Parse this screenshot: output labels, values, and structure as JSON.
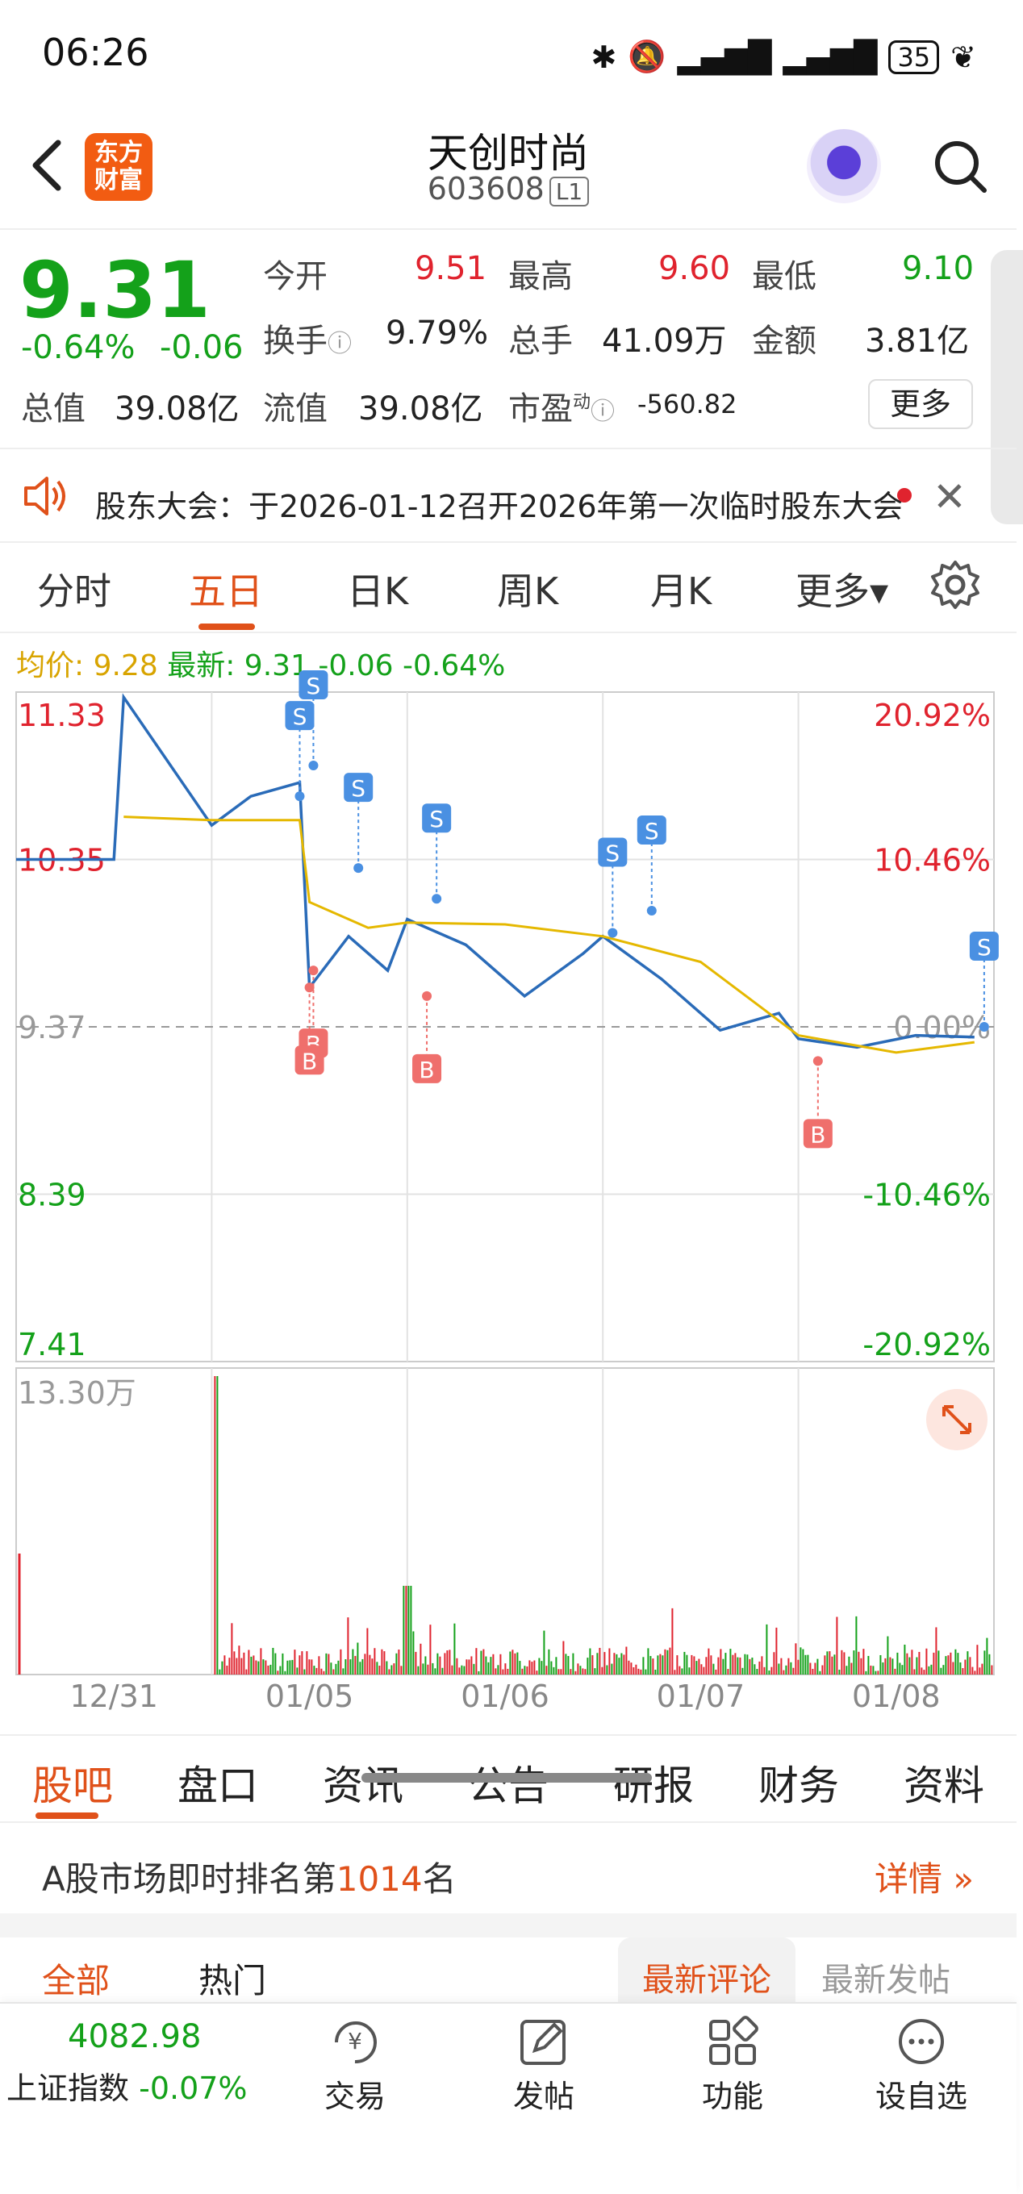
{
  "status": {
    "time": "06:26",
    "battery": "35"
  },
  "header": {
    "logo_line1": "东方",
    "logo_line2": "财富",
    "title": "天创时尚",
    "code": "603608",
    "level": "L1"
  },
  "quote": {
    "price": "9.31",
    "change_pct": "-0.64%",
    "change": "-0.06",
    "open_label": "今开",
    "open": "9.51",
    "high_label": "最高",
    "high": "9.60",
    "low_label": "最低",
    "low": "9.10",
    "turnover_label": "换手",
    "turnover": "9.79%",
    "volume_label": "总手",
    "volume": "41.09万",
    "amount_label": "金额",
    "amount": "3.81亿",
    "mktcap_label": "总值",
    "mktcap": "39.08亿",
    "float_label": "流值",
    "float": "39.08亿",
    "pe_label": "市盈",
    "pe_sup": "动",
    "pe": "-560.82",
    "more": "更多"
  },
  "notice": {
    "text": "股东大会：于2026-01-12召开2026年第一次临时股东大会"
  },
  "period_tabs": [
    "分时",
    "五日",
    "日K",
    "周K",
    "月K",
    "更多▾"
  ],
  "legend": {
    "avg_label": "均价:",
    "avg": "9.28",
    "latest_label": "最新:",
    "latest": "9.31",
    "change": "-0.06",
    "change_pct": "-0.64%"
  },
  "chart_data": {
    "type": "line",
    "title": "",
    "x_labels": [
      "12/31",
      "01/05",
      "01/06",
      "01/07",
      "01/08"
    ],
    "y_labels": [
      "11.33",
      "10.35",
      "9.37",
      "8.39",
      "7.41"
    ],
    "y_pct_labels": [
      "20.92%",
      "10.46%",
      "0.00%",
      "-10.46%",
      "-20.92%"
    ],
    "ylim": [
      7.41,
      11.33
    ],
    "prev_close": 9.37,
    "volume_max_label": "13.30万",
    "series": [
      {
        "name": "最新",
        "x": [
          0,
          0.5,
          0.55,
          1,
          1.2,
          1.45,
          1.5,
          1.7,
          1.9,
          2,
          2.3,
          2.6,
          2.9,
          3,
          3.3,
          3.6,
          3.9,
          4,
          4.3,
          4.6,
          4.9
        ],
        "values": [
          10.35,
          10.35,
          11.3,
          10.55,
          10.72,
          10.8,
          9.6,
          9.9,
          9.7,
          10.0,
          9.85,
          9.55,
          9.8,
          9.9,
          9.65,
          9.35,
          9.45,
          9.3,
          9.25,
          9.32,
          9.31
        ]
      },
      {
        "name": "均价",
        "x": [
          0.55,
          1,
          1.45,
          1.5,
          1.8,
          2,
          2.5,
          3,
          3.5,
          4,
          4.5,
          4.9
        ],
        "values": [
          10.6,
          10.58,
          10.58,
          10.1,
          9.95,
          9.98,
          9.97,
          9.9,
          9.75,
          9.32,
          9.22,
          9.28
        ]
      }
    ],
    "trade_marks": [
      {
        "type": "S",
        "x": 1.45,
        "value": 10.72
      },
      {
        "type": "S",
        "x": 1.52,
        "value": 10.9
      },
      {
        "type": "S",
        "x": 1.75,
        "value": 10.3
      },
      {
        "type": "S",
        "x": 2.15,
        "value": 10.12
      },
      {
        "type": "S",
        "x": 3.05,
        "value": 9.92
      },
      {
        "type": "S",
        "x": 3.25,
        "value": 10.05
      },
      {
        "type": "S",
        "x": 4.95,
        "value": 9.37
      },
      {
        "type": "B",
        "x": 1.52,
        "value": 9.7
      },
      {
        "type": "B",
        "x": 1.5,
        "value": 9.6
      },
      {
        "type": "B",
        "x": 2.1,
        "value": 9.55
      },
      {
        "type": "B",
        "x": 4.1,
        "value": 9.17
      }
    ]
  },
  "info_tabs": [
    "股吧",
    "盘口",
    "资讯",
    "公告",
    "研报",
    "财务",
    "资料"
  ],
  "ranking": {
    "prefix": "A股市场即时排名第",
    "rank": "1014",
    "suffix": "名",
    "detail": "详情 »"
  },
  "comment_tabs": [
    "全部",
    "热门",
    "最新评论",
    "最新发帖"
  ],
  "bottom": {
    "index_value": "4082.98",
    "index_name": "上证指数",
    "index_change": "-0.07%",
    "buttons": [
      "交易",
      "发帖",
      "功能",
      "设自选"
    ]
  },
  "colors": {
    "up": "#e0232e",
    "down": "#14a11a",
    "accent": "#e0511a",
    "line": "#2a6bb8",
    "avg": "#e5b800"
  }
}
